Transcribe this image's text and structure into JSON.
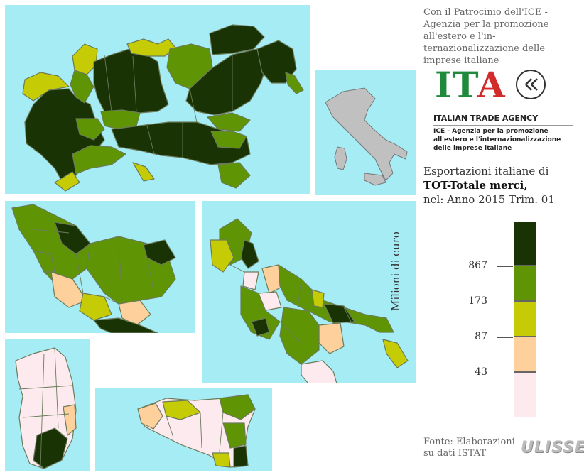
{
  "sponsor_text": "Con il Patrocinio dell'ICE - Agenzia per la promozione all'estero e l'in-ternazionalizzazione delle imprese italiane",
  "logo": {
    "letters": [
      "I",
      "T",
      "A"
    ],
    "agency": "ITALIAN TRADE AGENCY",
    "subtitle": "ICE - Agenzia per la promozione all'estero e l'internazionalizzazione delle imprese italiane"
  },
  "title": {
    "line1": "Esportazioni italiane di",
    "line2_bold": "TOT-Totale merci,",
    "line3": "nel: Anno 2015 Trim. 01"
  },
  "legend": {
    "axis_title": "Milioni di euro",
    "breaks": [
      "867",
      "173",
      "87",
      "43"
    ],
    "colors": [
      "#1a3305",
      "#5f9405",
      "#c5cc05",
      "#fdd09c",
      "#fdeaef"
    ]
  },
  "source": {
    "line1": "Fonte: Elaborazioni",
    "line2": "su dati ISTAT"
  },
  "brand": "ULISSE",
  "colors": {
    "sea": "#a6ecf5",
    "class_1": "#1a3305",
    "class_2": "#5f9405",
    "class_3": "#c5cc05",
    "class_4": "#fdd09c",
    "class_5": "#fdeaef",
    "inset_italy": "#c0c0c0"
  }
}
